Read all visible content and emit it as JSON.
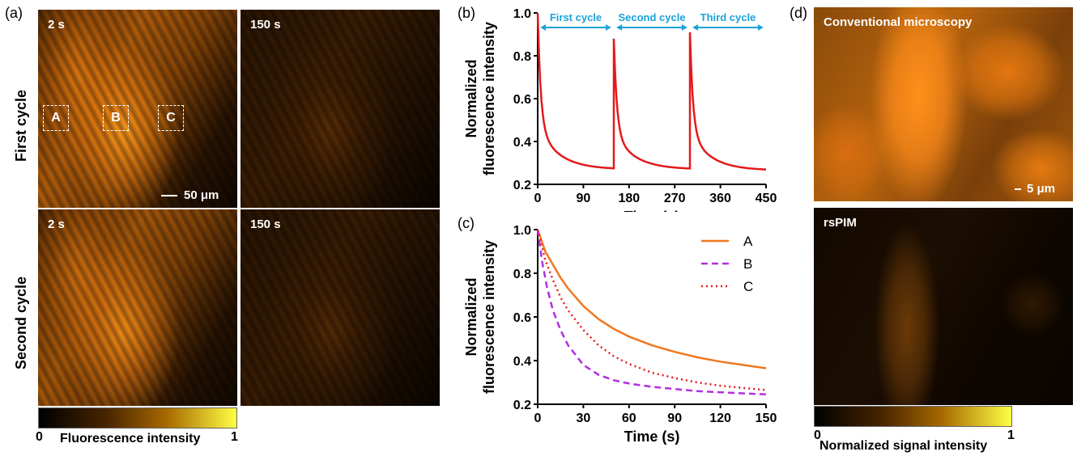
{
  "panels": {
    "a": {
      "letter": "(a)",
      "row_labels": [
        "First cycle",
        "Second cycle"
      ],
      "tiles": [
        {
          "label": "2 s"
        },
        {
          "label": "150 s"
        },
        {
          "label": "2 s"
        },
        {
          "label": "150 s"
        }
      ],
      "rois": [
        "A",
        "B",
        "C"
      ],
      "scalebar": "50 μm",
      "colorbar": {
        "min": "0",
        "max": "1",
        "title": "Fluorescence intensity"
      }
    },
    "b": {
      "letter": "(b)"
    },
    "c": {
      "letter": "(c)"
    },
    "d": {
      "letter": "(d)",
      "top_label": "Conventional microscopy",
      "scalebar": "5 μm",
      "bottom_label": "rsPIM",
      "colorbar": {
        "min": "0",
        "max": "1",
        "title": "Normalized signal intensity"
      }
    }
  },
  "chart_data": [
    {
      "id": "b",
      "type": "line",
      "xlabel": "Time (s)",
      "ylabel_lines": [
        "Normalized",
        "fluorescence intensity"
      ],
      "xlim": [
        0,
        450
      ],
      "ylim": [
        0.2,
        1.0
      ],
      "xticks": [
        0,
        90,
        180,
        270,
        360,
        450
      ],
      "yticks": [
        0.2,
        0.4,
        0.6,
        0.8,
        1.0
      ],
      "ytick_labels": [
        "0.2",
        "0.4",
        "0.6",
        "0.8",
        "1.0"
      ],
      "color": "#e31a1c",
      "cycles": [
        {
          "start": 0,
          "end": 150,
          "peak": 1.0,
          "floor": 0.27
        },
        {
          "start": 150,
          "end": 300,
          "peak": 0.88,
          "floor": 0.27
        },
        {
          "start": 300,
          "end": 450,
          "peak": 0.91,
          "floor": 0.265
        }
      ],
      "annotations": [
        {
          "text": "First cycle",
          "x_from": 5,
          "x_to": 145
        },
        {
          "text": "Second cycle",
          "x_from": 155,
          "x_to": 295
        },
        {
          "text": "Third cycle",
          "x_from": 305,
          "x_to": 445
        }
      ],
      "annotation_color": "#1aa3d9"
    },
    {
      "id": "c",
      "type": "line",
      "xlabel": "Time (s)",
      "ylabel_lines": [
        "Normalized",
        "fluorescence intensity"
      ],
      "xlim": [
        0,
        150
      ],
      "ylim": [
        0.2,
        1.0
      ],
      "xticks": [
        0,
        30,
        60,
        90,
        120,
        150
      ],
      "yticks": [
        0.2,
        0.4,
        0.6,
        0.8,
        1.0
      ],
      "ytick_labels": [
        "0.2",
        "0.4",
        "0.6",
        "0.8",
        "1.0"
      ],
      "legend_position": "top-right",
      "series": [
        {
          "name": "A",
          "color": "#f07820",
          "style": "solid",
          "points": [
            [
              0,
              1.0
            ],
            [
              5,
              0.9
            ],
            [
              10,
              0.84
            ],
            [
              15,
              0.78
            ],
            [
              20,
              0.73
            ],
            [
              30,
              0.65
            ],
            [
              40,
              0.59
            ],
            [
              50,
              0.545
            ],
            [
              60,
              0.51
            ],
            [
              75,
              0.47
            ],
            [
              90,
              0.44
            ],
            [
              105,
              0.415
            ],
            [
              120,
              0.395
            ],
            [
              135,
              0.38
            ],
            [
              150,
              0.365
            ]
          ]
        },
        {
          "name": "B",
          "color": "#b32ee0",
          "style": "dashed",
          "points": [
            [
              0,
              1.0
            ],
            [
              3,
              0.85
            ],
            [
              6,
              0.74
            ],
            [
              10,
              0.63
            ],
            [
              15,
              0.54
            ],
            [
              20,
              0.47
            ],
            [
              30,
              0.38
            ],
            [
              40,
              0.335
            ],
            [
              50,
              0.31
            ],
            [
              60,
              0.295
            ],
            [
              75,
              0.28
            ],
            [
              90,
              0.27
            ],
            [
              105,
              0.26
            ],
            [
              120,
              0.255
            ],
            [
              135,
              0.25
            ],
            [
              150,
              0.245
            ]
          ]
        },
        {
          "name": "C",
          "color": "#e31a1c",
          "style": "dotted",
          "points": [
            [
              0,
              1.0
            ],
            [
              5,
              0.86
            ],
            [
              10,
              0.77
            ],
            [
              15,
              0.69
            ],
            [
              20,
              0.63
            ],
            [
              30,
              0.54
            ],
            [
              40,
              0.47
            ],
            [
              50,
              0.42
            ],
            [
              60,
              0.385
            ],
            [
              75,
              0.345
            ],
            [
              90,
              0.32
            ],
            [
              105,
              0.3
            ],
            [
              120,
              0.285
            ],
            [
              135,
              0.275
            ],
            [
              150,
              0.265
            ]
          ]
        }
      ]
    }
  ]
}
